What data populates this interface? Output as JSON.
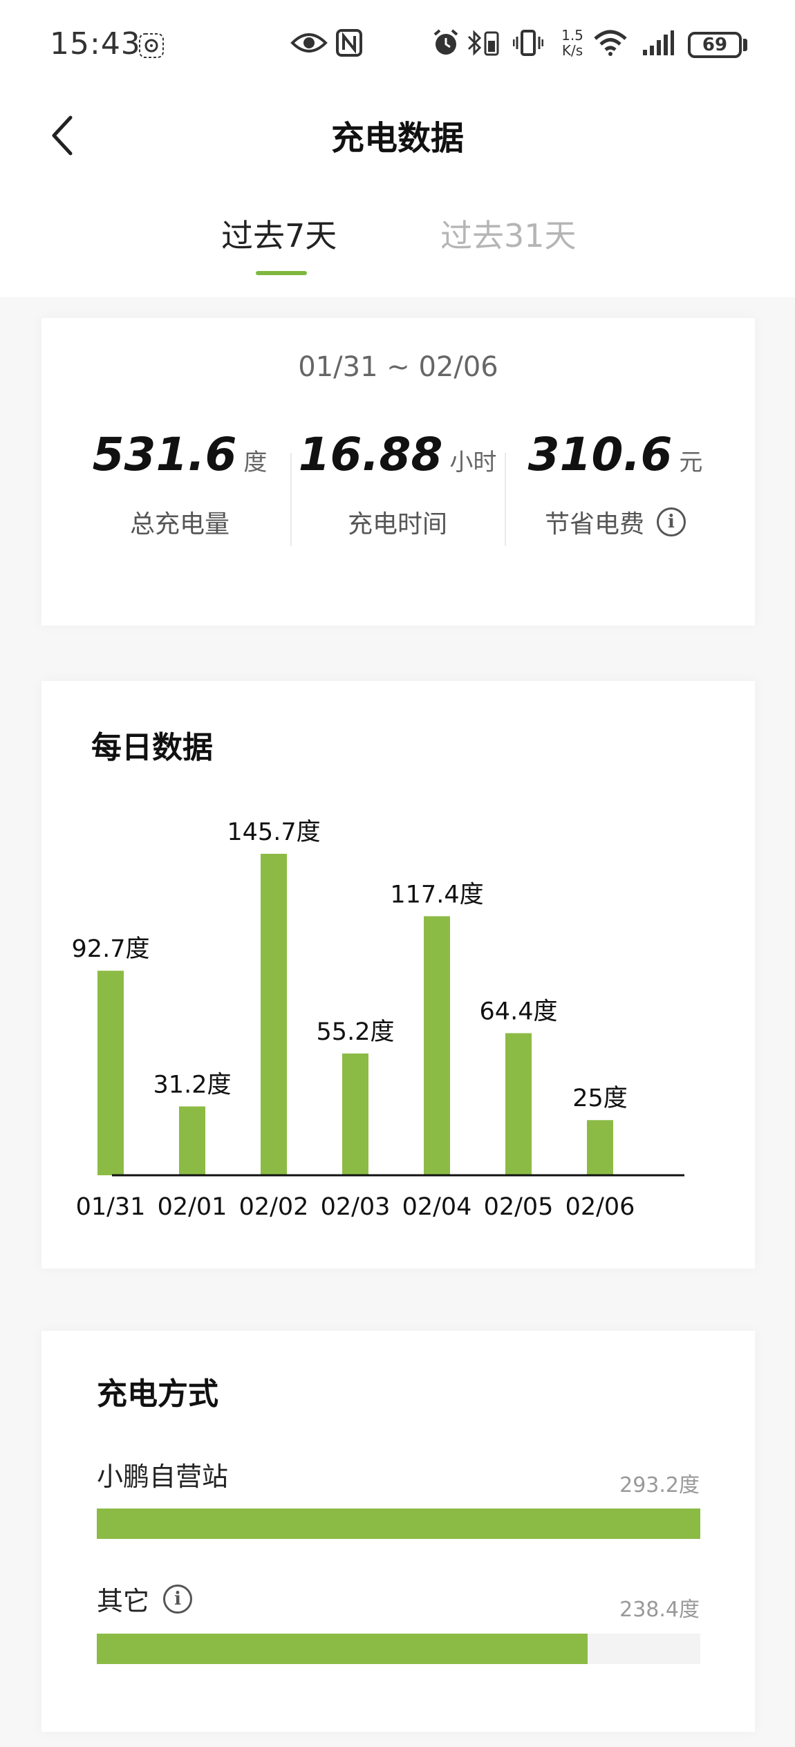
{
  "status_bar": {
    "time": "15:43",
    "net_speed_top": "1.5",
    "net_speed_bottom": "K/s",
    "battery": "69",
    "icons": [
      "pinwheel-icon",
      "eye-icon",
      "nfc-icon",
      "alarm-icon",
      "bluetooth-battery-icon",
      "vibrate-icon",
      "wifi-icon",
      "signal-icon",
      "battery-icon"
    ]
  },
  "header": {
    "title": "充电数据",
    "back_icon": "chevron-left-icon"
  },
  "tabs": [
    {
      "label": "过去7天",
      "active": true
    },
    {
      "label": "过去31天",
      "active": false
    }
  ],
  "summary": {
    "date_range": "01/31 ~ 02/06",
    "stats": [
      {
        "value": "531.6",
        "unit": "度",
        "label": "总充电量",
        "info": false
      },
      {
        "value": "16.88",
        "unit": "小时",
        "label": "充电时间",
        "info": false
      },
      {
        "value": "310.6",
        "unit": "元",
        "label": "节省电费",
        "info": true
      }
    ],
    "info_glyph": "i"
  },
  "daily": {
    "title": "每日数据"
  },
  "chart_data": {
    "type": "bar",
    "categories": [
      "01/31",
      "02/01",
      "02/02",
      "02/03",
      "02/04",
      "02/05",
      "02/06"
    ],
    "values": [
      92.7,
      31.2,
      145.7,
      55.2,
      117.4,
      64.4,
      25
    ],
    "data_labels": [
      "92.7度",
      "31.2度",
      "145.7度",
      "55.2度",
      "117.4度",
      "64.4度",
      "25度"
    ],
    "unit": "度",
    "bar_color": "#8cbb45",
    "ylim": [
      0,
      145.7
    ],
    "grid": false,
    "legend": "none"
  },
  "methods": {
    "title": "充电方式",
    "items": [
      {
        "label": "小鹏自营站",
        "value_text": "293.2度",
        "value": 293.2,
        "info": false
      },
      {
        "label": "其它",
        "value_text": "238.4度",
        "value": 238.4,
        "info": true
      }
    ],
    "max_value": 293.2
  },
  "colors": {
    "accent": "#7fb83e",
    "bar": "#8cbb45",
    "inactive_tab": "#b5b5b5"
  }
}
